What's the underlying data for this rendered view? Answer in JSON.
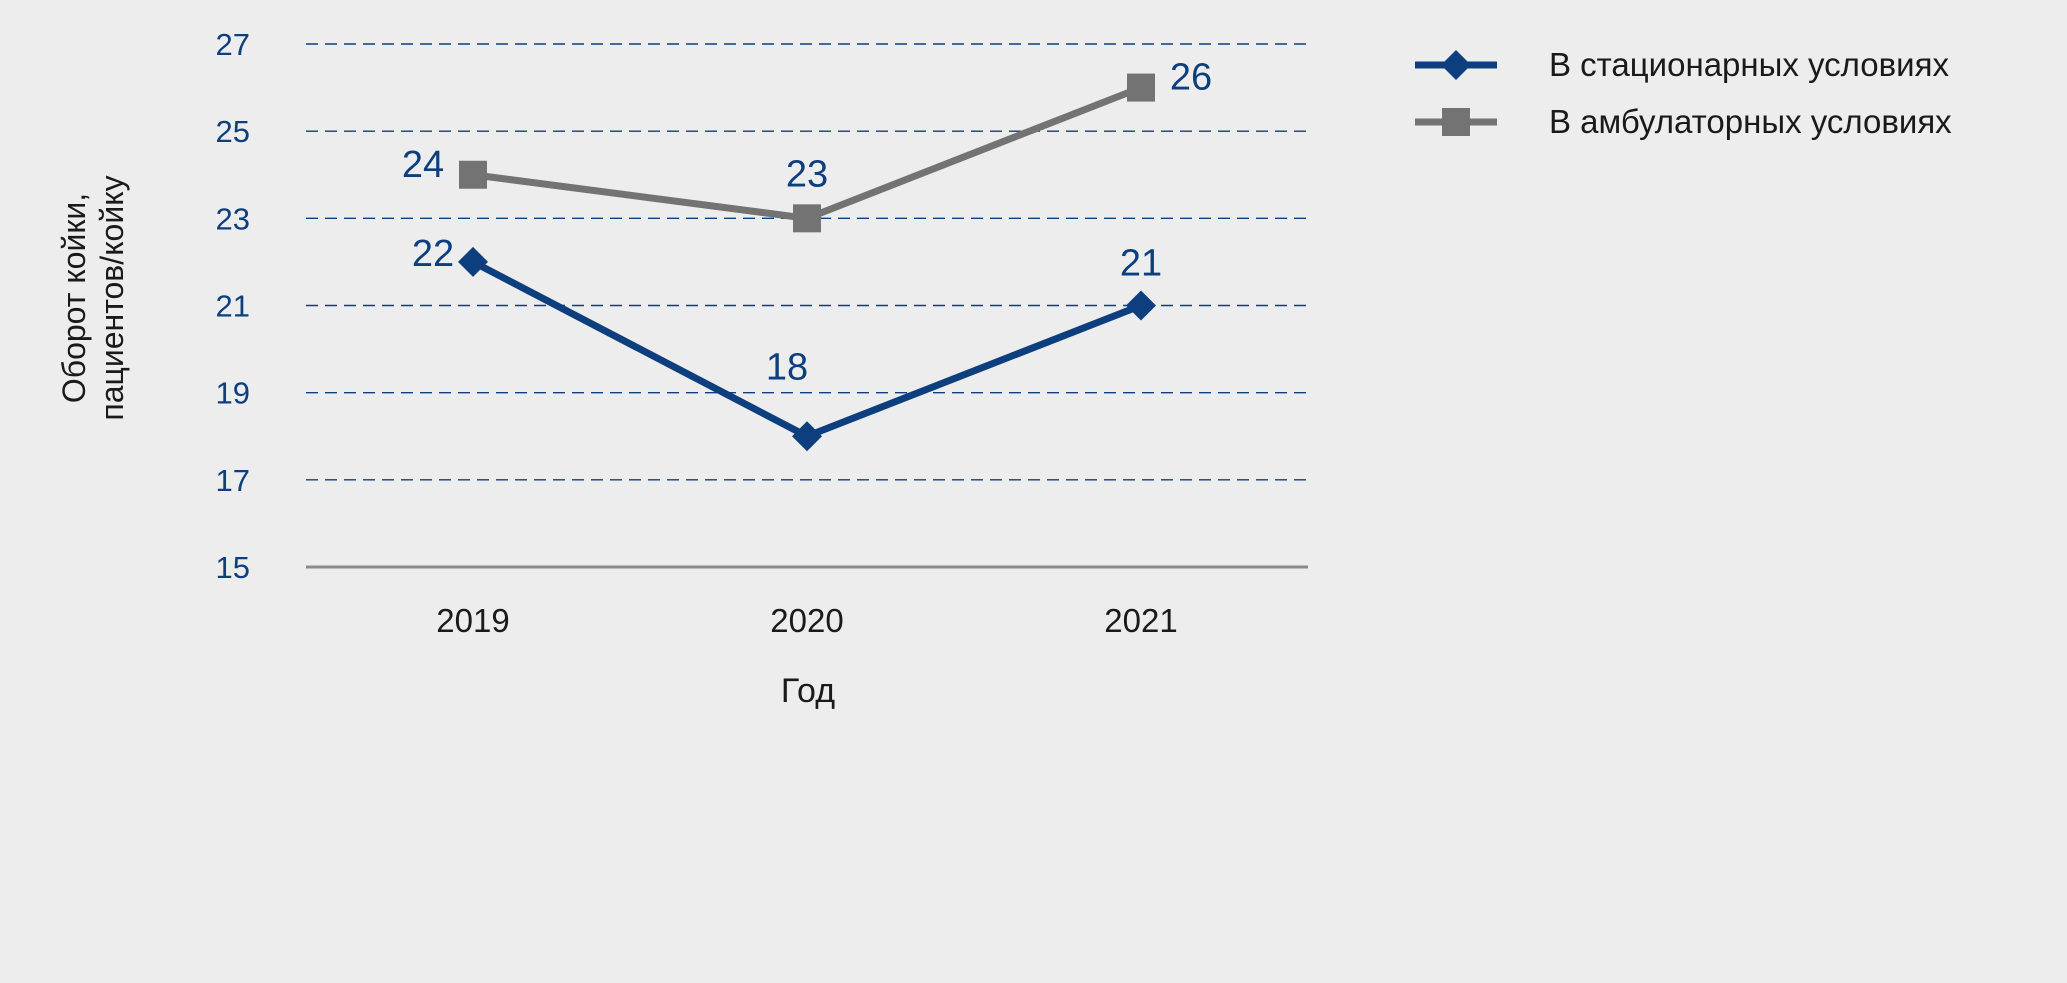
{
  "chart_data": {
    "type": "line",
    "categories": [
      "2019",
      "2020",
      "2021"
    ],
    "series": [
      {
        "name": "В стационарных условиях",
        "values": [
          22,
          18,
          21
        ],
        "color": "#0d3f7e",
        "marker": "diamond"
      },
      {
        "name": "В амбулаторных условиях",
        "values": [
          24,
          23,
          26
        ],
        "color": "#737373",
        "marker": "square"
      }
    ],
    "xlabel": "Год",
    "ylabel_lines": [
      "Оборот койки,",
      "пациентов/койку"
    ],
    "yticks": [
      15,
      17,
      19,
      21,
      23,
      25,
      27
    ],
    "ylim": [
      15,
      27
    ],
    "grid": true,
    "grid_style": "dashed",
    "legend_position": "top-right",
    "colors": {
      "tick_label": "#0d3f7e",
      "data_label": "#0d3f7e",
      "grid": "#0d3f7e",
      "baseline": "#8a8a8a",
      "text": "#1a1a1a",
      "background": "#ededed"
    }
  }
}
